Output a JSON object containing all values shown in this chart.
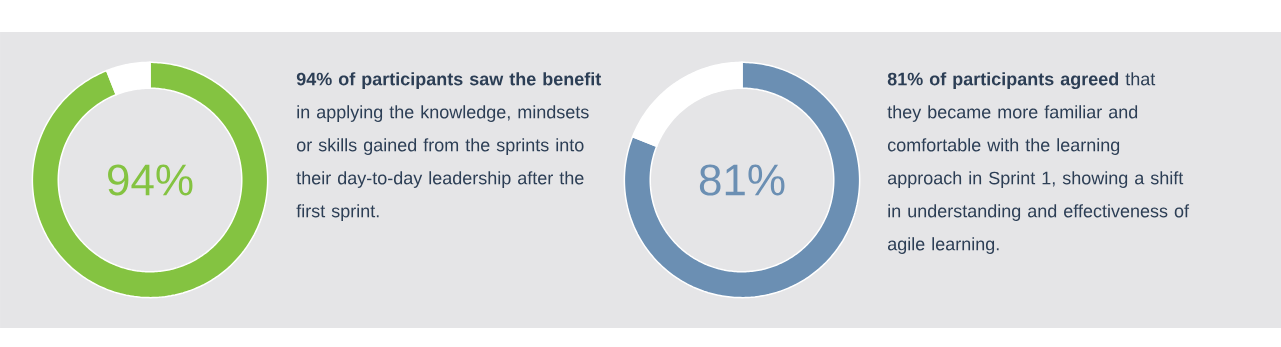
{
  "chart_data": [
    {
      "type": "donut",
      "categories": [
        null,
        null
      ],
      "values": [
        94,
        6
      ],
      "colors": [
        "#84c341",
        "#ffffff"
      ],
      "value_labels": [
        "94%",
        null
      ],
      "annotations": [
        "**94% of participants saw the benefit** in applying the knowledge, mindsets or skills gained from the sprints into their day-to-day leadership after the first sprint."
      ]
    },
    {
      "type": "donut",
      "categories": [
        null,
        null
      ],
      "values": [
        81,
        19
      ],
      "colors": [
        "#6b8fb3",
        "#ffffff"
      ],
      "value_labels": [
        "81%",
        null
      ],
      "annotations": [
        "**81% of participants agreed** that they became more familiar and comfortable with the learning approach in Sprint 1, showing a shift in understanding and effectiveness of agile learning."
      ]
    }
  ]
}
